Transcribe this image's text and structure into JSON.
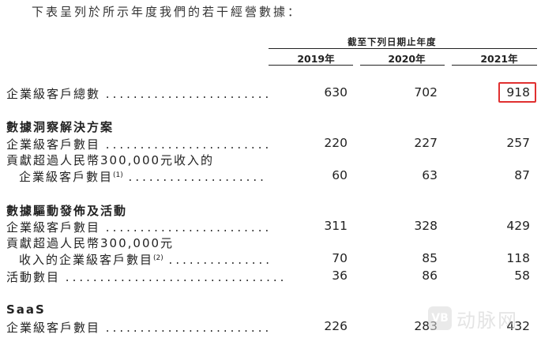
{
  "intro": "下表呈列於所示年度我們的若干經營數據：",
  "header": {
    "period_label": "截至下列日期止年度",
    "years": [
      "2019年",
      "2020年",
      "2021年"
    ]
  },
  "rows": {
    "total": {
      "label": "企業級客戶總數",
      "dots": "........................",
      "values": [
        "630",
        "702",
        "918"
      ]
    },
    "sec1_title": "數據洞察解決方案",
    "r1": {
      "label": "企業級客戶數目",
      "dots": "........................",
      "values": [
        "220",
        "227",
        "257"
      ]
    },
    "r2": {
      "label_a": "貢獻超過人民幣300,000元收入的",
      "label_b": "企業級客戶數目",
      "sup": "(1)",
      "dots": "....................",
      "values": [
        "60",
        "63",
        "87"
      ]
    },
    "sec2_title": "數據驅動發佈及活動",
    "r3": {
      "label": "企業級客戶數目",
      "dots": "........................",
      "values": [
        "311",
        "328",
        "429"
      ]
    },
    "r4": {
      "label_a": "貢獻超過人民幣300,000元",
      "label_b": "收入的企業級客戶數目",
      "sup": "(2)",
      "dots": "...............",
      "values": [
        "70",
        "85",
        "118"
      ]
    },
    "r5": {
      "label": "活動數目",
      "dots": "................................",
      "values": [
        "36",
        "86",
        "58"
      ]
    },
    "sec3_title": "SaaS",
    "r6": {
      "label": "企業級客戶數目",
      "dots": "........................",
      "values": [
        "226",
        "283",
        "432"
      ]
    }
  },
  "highlight_color": "#e03030",
  "watermark": {
    "logo": "VB",
    "text": "动脉网"
  }
}
